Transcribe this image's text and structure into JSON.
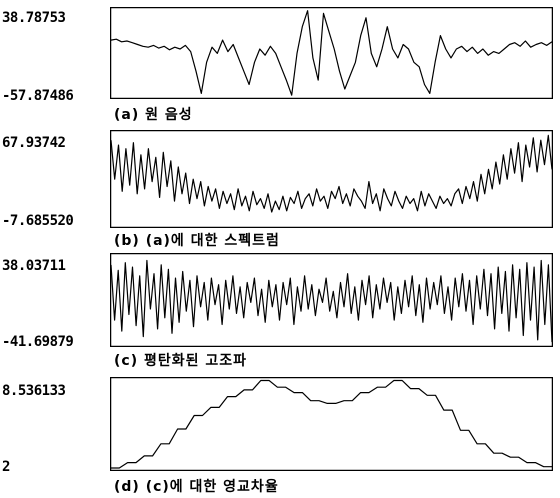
{
  "chart_data": [
    {
      "type": "line",
      "ymax_label": "38.78753",
      "ymin_label": "-57.87486",
      "ylim": [
        -57.87486,
        38.78753
      ],
      "caption": "(a) 원 음성",
      "color": "#000000",
      "y": [
        5,
        6,
        3,
        4,
        2,
        0,
        -2,
        -3,
        -1,
        -4,
        -2,
        -6,
        -3,
        -5,
        -1,
        -8,
        -30,
        -55,
        -20,
        -3,
        -10,
        5,
        -8,
        0,
        -15,
        -30,
        -45,
        -20,
        -5,
        -12,
        -2,
        -10,
        -25,
        -40,
        -57,
        -10,
        20,
        38,
        -15,
        -40,
        35,
        15,
        -5,
        -30,
        -50,
        -35,
        -20,
        10,
        30,
        -10,
        -25,
        -5,
        20,
        -5,
        -15,
        0,
        -5,
        -20,
        -25,
        -45,
        -55,
        -20,
        10,
        -5,
        -15,
        -5,
        -2,
        -8,
        -3,
        -10,
        -5,
        -12,
        -8,
        -10,
        -5,
        0,
        2,
        -2,
        4,
        -3,
        0,
        2,
        -1,
        3
      ]
    },
    {
      "type": "line",
      "ymax_label": "67.93742",
      "ymin_label": "-7.685520",
      "ylim": [
        -7.68552,
        67.93742
      ],
      "caption": "(b) (a)에 대한 스펙트럼",
      "color": "#000000",
      "y": [
        62,
        30,
        58,
        20,
        55,
        25,
        60,
        18,
        50,
        22,
        55,
        28,
        48,
        15,
        52,
        24,
        45,
        12,
        40,
        18,
        35,
        10,
        30,
        14,
        28,
        8,
        24,
        12,
        22,
        6,
        20,
        10,
        18,
        5,
        22,
        8,
        16,
        4,
        20,
        9,
        14,
        6,
        18,
        3,
        12,
        5,
        16,
        4,
        15,
        10,
        20,
        6,
        14,
        18,
        8,
        22,
        12,
        16,
        6,
        20,
        14,
        24,
        10,
        18,
        8,
        22,
        16,
        12,
        6,
        28,
        10,
        18,
        4,
        22,
        14,
        8,
        20,
        12,
        6,
        16,
        10,
        14,
        4,
        20,
        8,
        18,
        12,
        6,
        16,
        10,
        14,
        8,
        18,
        22,
        10,
        24,
        14,
        28,
        12,
        34,
        18,
        38,
        22,
        44,
        26,
        50,
        30,
        55,
        35,
        60,
        28,
        58,
        40,
        64,
        36,
        62,
        42,
        66,
        38
      ]
    },
    {
      "type": "line",
      "ymax_label": "38.03711",
      "ymin_label": "-41.69879",
      "ylim": [
        -41.69879,
        38.03711
      ],
      "caption": "(c) 평탄화된 고조파",
      "color": "#000000",
      "y": [
        30,
        -20,
        25,
        -30,
        32,
        -15,
        28,
        -25,
        20,
        -35,
        34,
        -10,
        22,
        -28,
        30,
        -18,
        26,
        -32,
        18,
        -22,
        24,
        -12,
        16,
        -26,
        20,
        -8,
        14,
        -20,
        18,
        -6,
        12,
        -24,
        16,
        -10,
        20,
        -14,
        10,
        -18,
        14,
        -4,
        18,
        -16,
        8,
        -22,
        16,
        -8,
        12,
        -20,
        14,
        -6,
        18,
        -24,
        10,
        -12,
        20,
        -10,
        12,
        -16,
        8,
        -4,
        18,
        -12,
        6,
        -18,
        14,
        -8,
        22,
        -14,
        10,
        -20,
        16,
        -6,
        20,
        -18,
        12,
        -10,
        18,
        -4,
        14,
        -20,
        10,
        -14,
        16,
        -8,
        20,
        -16,
        12,
        -22,
        18,
        -10,
        14,
        -6,
        20,
        -14,
        10,
        -20,
        18,
        -8,
        22,
        -12,
        16,
        -24,
        20,
        -10,
        26,
        -16,
        22,
        -28,
        28,
        -14,
        24,
        -30,
        30,
        -18,
        26,
        -34,
        32,
        -20,
        28,
        -38,
        34,
        -24,
        30,
        -40
      ]
    },
    {
      "type": "line",
      "ymax_label": "8.536133",
      "ymin_label": "2",
      "ylim": [
        2,
        8.536133
      ],
      "caption": "(d) (c)에 대한 영교차율",
      "color": "#000000",
      "y": [
        2,
        2,
        2.4,
        2.4,
        2.9,
        2.9,
        3.8,
        3.8,
        4.9,
        4.9,
        5.9,
        5.9,
        6.5,
        6.5,
        7.3,
        7.3,
        7.8,
        7.8,
        8.5,
        8.5,
        8.0,
        8.0,
        7.6,
        7.6,
        7.0,
        7.0,
        6.8,
        6.8,
        7.0,
        7.0,
        7.6,
        7.6,
        8.0,
        8.0,
        8.5,
        8.5,
        7.9,
        7.9,
        7.4,
        7.4,
        6.3,
        6.3,
        4.8,
        4.8,
        3.8,
        3.8,
        3.1,
        3.1,
        2.8,
        2.8,
        2.4,
        2.4,
        2.1,
        2.1
      ]
    }
  ]
}
